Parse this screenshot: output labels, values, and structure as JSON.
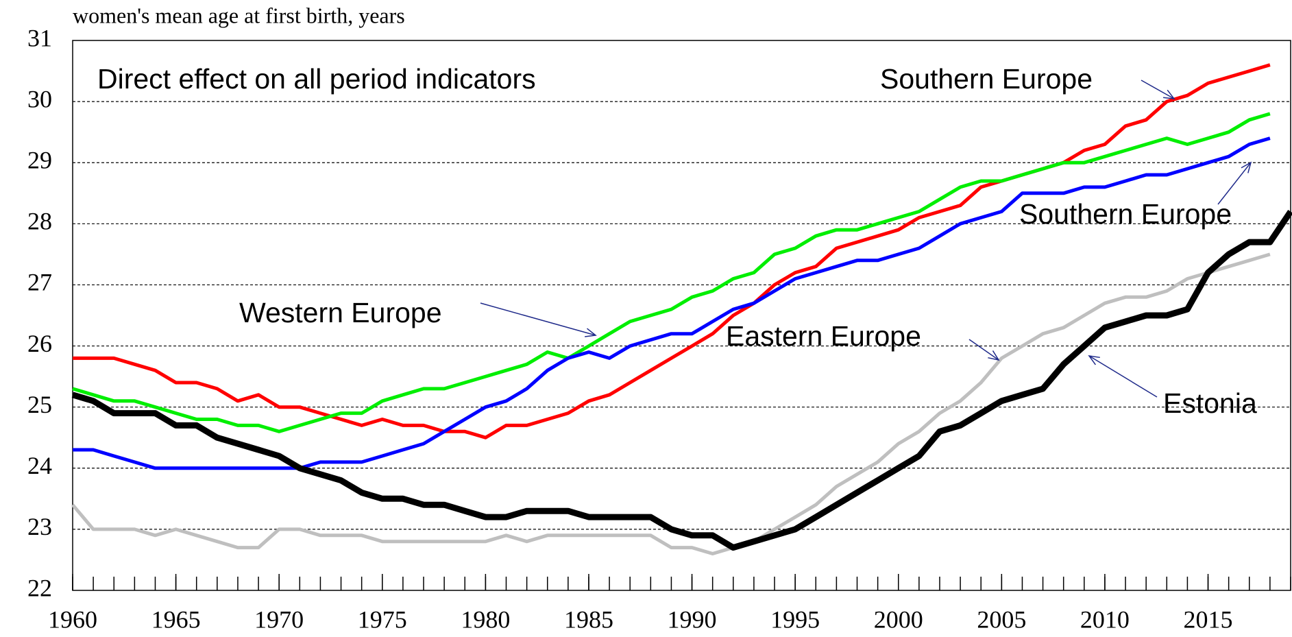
{
  "chart_data": {
    "type": "line",
    "y_axis_title": "women's mean age at first birth, years",
    "annotation": "Direct effect on all period indicators",
    "x": [
      1960,
      1961,
      1962,
      1963,
      1964,
      1965,
      1966,
      1967,
      1968,
      1969,
      1970,
      1971,
      1972,
      1973,
      1974,
      1975,
      1976,
      1977,
      1978,
      1979,
      1980,
      1981,
      1982,
      1983,
      1984,
      1985,
      1986,
      1987,
      1988,
      1989,
      1990,
      1991,
      1992,
      1993,
      1994,
      1995,
      1996,
      1997,
      1998,
      1999,
      2000,
      2001,
      2002,
      2003,
      2004,
      2005,
      2006,
      2007,
      2008,
      2009,
      2010,
      2011,
      2012,
      2013,
      2014,
      2015,
      2016,
      2017,
      2018,
      2019
    ],
    "xlim": [
      1960,
      2019
    ],
    "xticks": [
      1960,
      1965,
      1970,
      1975,
      1980,
      1985,
      1990,
      1995,
      2000,
      2005,
      2010,
      2015
    ],
    "ylim": [
      22,
      31
    ],
    "yticks": [
      22,
      23,
      24,
      25,
      26,
      27,
      28,
      29,
      30,
      31
    ],
    "grid": true,
    "series": [
      {
        "name": "Southern Europe",
        "color": "#ff0000",
        "values": [
          25.8,
          25.8,
          25.8,
          25.7,
          25.6,
          25.4,
          25.4,
          25.3,
          25.1,
          25.2,
          25.0,
          25.0,
          24.9,
          24.8,
          24.7,
          24.8,
          24.7,
          24.7,
          24.6,
          24.6,
          24.5,
          24.7,
          24.7,
          24.8,
          24.9,
          25.1,
          25.2,
          25.4,
          25.6,
          25.8,
          26.0,
          26.2,
          26.5,
          26.7,
          27.0,
          27.2,
          27.3,
          27.6,
          27.7,
          27.8,
          27.9,
          28.1,
          28.2,
          28.3,
          28.6,
          28.7,
          28.8,
          28.9,
          29.0,
          29.2,
          29.3,
          29.6,
          29.7,
          30.0,
          30.1,
          30.3,
          30.4,
          30.5,
          30.6,
          null
        ]
      },
      {
        "name": "Western Europe",
        "color": "#00ee00",
        "values": [
          25.3,
          25.2,
          25.1,
          25.1,
          25.0,
          24.9,
          24.8,
          24.8,
          24.7,
          24.7,
          24.6,
          24.7,
          24.8,
          24.9,
          24.9,
          25.1,
          25.2,
          25.3,
          25.3,
          25.4,
          25.5,
          25.6,
          25.7,
          25.9,
          25.8,
          26.0,
          26.2,
          26.4,
          26.5,
          26.6,
          26.8,
          26.9,
          27.1,
          27.2,
          27.5,
          27.6,
          27.8,
          27.9,
          27.9,
          28.0,
          28.1,
          28.2,
          28.4,
          28.6,
          28.7,
          28.7,
          28.8,
          28.9,
          29.0,
          29.0,
          29.1,
          29.2,
          29.3,
          29.4,
          29.3,
          29.4,
          29.5,
          29.7,
          29.8,
          null
        ]
      },
      {
        "name": "Southern Europe",
        "color": "#0000ff",
        "values": [
          24.3,
          24.3,
          24.2,
          24.1,
          24.0,
          24.0,
          24.0,
          24.0,
          24.0,
          24.0,
          24.0,
          24.0,
          24.1,
          24.1,
          24.1,
          24.2,
          24.3,
          24.4,
          24.6,
          24.8,
          25.0,
          25.1,
          25.3,
          25.6,
          25.8,
          25.9,
          25.8,
          26.0,
          26.1,
          26.2,
          26.2,
          26.4,
          26.6,
          26.7,
          26.9,
          27.1,
          27.2,
          27.3,
          27.4,
          27.4,
          27.5,
          27.6,
          27.8,
          28.0,
          28.1,
          28.2,
          28.5,
          28.5,
          28.5,
          28.6,
          28.6,
          28.7,
          28.8,
          28.8,
          28.9,
          29.0,
          29.1,
          29.3,
          29.4,
          null
        ]
      },
      {
        "name": "Eastern Europe",
        "color": "#bfbfbf",
        "values": [
          23.4,
          23.0,
          23.0,
          23.0,
          22.9,
          23.0,
          22.9,
          22.8,
          22.7,
          22.7,
          23.0,
          23.0,
          22.9,
          22.9,
          22.9,
          22.8,
          22.8,
          22.8,
          22.8,
          22.8,
          22.8,
          22.9,
          22.8,
          22.9,
          22.9,
          22.9,
          22.9,
          22.9,
          22.9,
          22.7,
          22.7,
          22.6,
          22.7,
          22.8,
          23.0,
          23.2,
          23.4,
          23.7,
          23.9,
          24.1,
          24.4,
          24.6,
          24.9,
          25.1,
          25.4,
          25.8,
          26.0,
          26.2,
          26.3,
          26.5,
          26.7,
          26.8,
          26.8,
          26.9,
          27.1,
          27.2,
          27.3,
          27.4,
          27.5,
          null
        ]
      },
      {
        "name": "Estonia",
        "color": "#000000",
        "values": [
          25.2,
          25.1,
          24.9,
          24.9,
          24.9,
          24.7,
          24.7,
          24.5,
          24.4,
          24.3,
          24.2,
          24.0,
          23.9,
          23.8,
          23.6,
          23.5,
          23.5,
          23.4,
          23.4,
          23.3,
          23.2,
          23.2,
          23.3,
          23.3,
          23.3,
          23.2,
          23.2,
          23.2,
          23.2,
          23.0,
          22.9,
          22.9,
          22.7,
          22.8,
          22.9,
          23.0,
          23.2,
          23.4,
          23.6,
          23.8,
          24.0,
          24.2,
          24.6,
          24.7,
          24.9,
          25.1,
          25.2,
          25.3,
          25.7,
          26.0,
          26.3,
          26.4,
          26.5,
          26.5,
          26.6,
          27.2,
          27.5,
          27.7,
          27.7,
          28.2
        ]
      }
    ]
  }
}
